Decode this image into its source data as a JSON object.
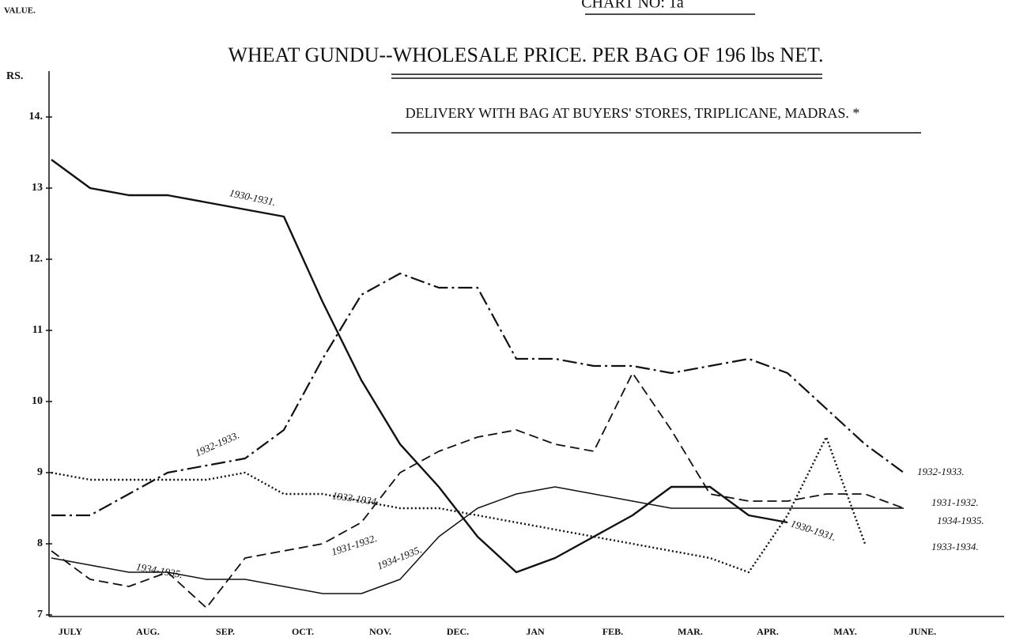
{
  "chart_data": {
    "type": "line",
    "chart_number": "CHART NO: 1a",
    "title": "WHEAT GUNDU--WHOLESALE PRICE. PER BAG OF 196 lbs NET.",
    "subtitle": "DELIVERY WITH BAG AT BUYERS' STORES, TRIPLICANE, MADRAS. *",
    "y_label": "VALUE.",
    "y_unit": "RS.",
    "categories": [
      "JULY",
      null,
      "AUG.",
      null,
      "SEP.",
      null,
      "OCT.",
      null,
      "NOV.",
      null,
      "DEC.",
      null,
      "JAN",
      null,
      "FEB.",
      null,
      "MAR.",
      null,
      "APR.",
      null,
      "MAY.",
      null,
      "JUNE.",
      null
    ],
    "ylim": [
      7,
      14.6
    ],
    "yticks": [
      7,
      8,
      9,
      10,
      11,
      {
        "value": 12,
        "label": "12."
      },
      13,
      {
        "value": 14,
        "label": "14."
      }
    ],
    "grid": false,
    "series": [
      {
        "name": "1930-1931.",
        "color": "#111",
        "style": "solid-heavy",
        "values": [
          13.4,
          13.0,
          12.9,
          12.9,
          12.8,
          12.7,
          12.6,
          11.4,
          10.3,
          9.4,
          8.8,
          8.1,
          7.6,
          7.8,
          8.1,
          8.4,
          8.8,
          8.8,
          8.4,
          8.3,
          null,
          null,
          null,
          null
        ]
      },
      {
        "name": "1931-1932.",
        "color": "#111",
        "style": "dashed",
        "values": [
          7.9,
          7.5,
          7.4,
          7.6,
          7.1,
          7.8,
          7.9,
          8.0,
          8.3,
          9.0,
          9.3,
          9.5,
          9.6,
          9.4,
          9.3,
          10.4,
          9.6,
          8.7,
          8.6,
          8.6,
          8.7,
          8.7,
          8.5,
          null
        ]
      },
      {
        "name": "1932-1933.",
        "color": "#111",
        "style": "dashdot",
        "values": [
          8.4,
          8.4,
          8.7,
          9.0,
          9.1,
          9.2,
          9.6,
          10.6,
          11.5,
          11.8,
          11.6,
          11.6,
          10.6,
          10.6,
          10.5,
          10.5,
          10.4,
          10.5,
          10.6,
          10.4,
          9.9,
          9.4,
          9.0,
          null
        ]
      },
      {
        "name": "1933-1934.",
        "color": "#111",
        "style": "dotted",
        "values": [
          9.0,
          8.9,
          8.9,
          8.9,
          8.9,
          9.0,
          8.7,
          8.7,
          8.6,
          8.5,
          8.5,
          8.4,
          8.3,
          8.2,
          8.1,
          8.0,
          7.9,
          7.8,
          7.6,
          8.4,
          9.5,
          8.0,
          null,
          null
        ]
      },
      {
        "name": "1934-1935.",
        "color": "#111",
        "style": "solid",
        "values": [
          7.8,
          7.7,
          7.6,
          7.6,
          7.5,
          7.5,
          7.4,
          7.3,
          7.3,
          7.5,
          8.1,
          8.5,
          8.7,
          8.8,
          8.7,
          8.6,
          8.5,
          8.5,
          8.5,
          8.5,
          8.5,
          8.5,
          8.5,
          null
        ]
      }
    ]
  }
}
